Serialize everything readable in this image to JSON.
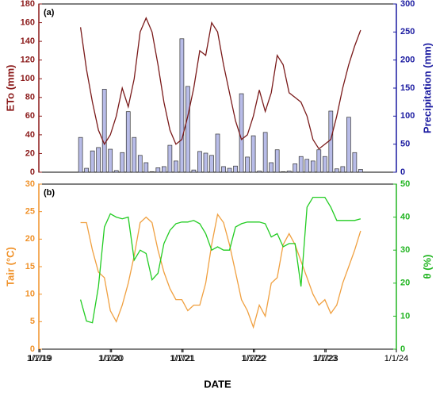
{
  "chart_data": [
    {
      "type": "combo",
      "annotation": "(a)",
      "ylabel": "ETo (mm)",
      "y2label": "Precipitation (mm)",
      "xlim": [
        "1/1/19",
        "1/1/24"
      ],
      "ylim": [
        0,
        180
      ],
      "yticks": [
        0,
        20,
        40,
        60,
        80,
        100,
        120,
        140,
        160,
        180
      ],
      "y2lim": [
        0,
        300
      ],
      "y2ticks": [
        0,
        50,
        100,
        150,
        200,
        250,
        300
      ],
      "ycolor": "#8b1a1a",
      "y2color": "#1a1aa0",
      "x": [
        "8/1/19",
        "9/1/19",
        "10/1/19",
        "11/1/19",
        "12/1/19",
        "1/1/20",
        "2/1/20",
        "3/1/20",
        "4/1/20",
        "5/1/20",
        "6/1/20",
        "7/1/20",
        "8/1/20",
        "9/1/20",
        "10/1/20",
        "11/1/20",
        "12/1/20",
        "1/1/21",
        "2/1/21",
        "3/1/21",
        "4/1/21",
        "5/1/21",
        "6/1/21",
        "7/1/21",
        "8/1/21",
        "9/1/21",
        "10/1/21",
        "11/1/21",
        "12/1/21",
        "1/1/22",
        "2/1/22",
        "3/1/22",
        "4/1/22",
        "5/1/22",
        "6/1/22",
        "7/1/22",
        "8/1/22",
        "9/1/22",
        "10/1/22",
        "11/1/22",
        "12/1/22",
        "1/1/23",
        "2/1/23",
        "3/1/23",
        "4/1/23",
        "5/1/23",
        "6/1/23",
        "7/1/23"
      ],
      "series": [
        {
          "type": "bar",
          "axis": "y2",
          "color": "#b8bce8",
          "values": [
            62,
            7,
            38,
            44,
            148,
            41,
            3,
            35,
            108,
            62,
            30,
            17,
            1,
            8,
            10,
            48,
            20,
            238,
            153,
            4,
            37,
            34,
            30,
            68,
            10,
            7,
            11,
            140,
            27,
            65,
            2,
            71,
            17,
            40,
            1,
            2,
            15,
            28,
            23,
            20,
            40,
            28,
            109,
            6,
            10,
            98,
            35,
            5
          ]
        },
        {
          "type": "line",
          "color": "#7a1a1a",
          "values": [
            155,
            110,
            75,
            45,
            30,
            40,
            60,
            90,
            70,
            100,
            150,
            165,
            150,
            115,
            75,
            45,
            30,
            35,
            60,
            90,
            130,
            125,
            160,
            150,
            115,
            85,
            55,
            35,
            40,
            60,
            88,
            65,
            85,
            125,
            115,
            85,
            80,
            75,
            60,
            35,
            25,
            30,
            35,
            60,
            90,
            115,
            135,
            152
          ]
        }
      ]
    },
    {
      "type": "line",
      "annotation": "(b)",
      "ylabel": "Tair (°C)",
      "y2label": "θ (%)",
      "xlabel": "DATE",
      "xlim": [
        "1/1/19",
        "1/1/24"
      ],
      "xticks": [
        "1/1/19",
        "1/7/19",
        "1/1/20",
        "1/7/20",
        "1/1/21",
        "1/7/21",
        "1/1/22",
        "1/7/22",
        "1/1/23",
        "1/7/23",
        "1/1/24"
      ],
      "ylim": [
        0,
        30
      ],
      "yticks": [
        0,
        5,
        10,
        15,
        20,
        25,
        30
      ],
      "y2lim": [
        0,
        50
      ],
      "y2ticks": [
        0,
        10,
        20,
        30,
        40,
        50
      ],
      "ycolor": "#f0922a",
      "y2color": "#22b522",
      "x": [
        "8/1/19",
        "9/1/19",
        "10/1/19",
        "11/1/19",
        "12/1/19",
        "1/1/20",
        "2/1/20",
        "3/1/20",
        "4/1/20",
        "5/1/20",
        "6/1/20",
        "7/1/20",
        "8/1/20",
        "9/1/20",
        "10/1/20",
        "11/1/20",
        "12/1/20",
        "1/1/21",
        "2/1/21",
        "3/1/21",
        "4/1/21",
        "5/1/21",
        "6/1/21",
        "7/1/21",
        "8/1/21",
        "9/1/21",
        "10/1/21",
        "11/1/21",
        "12/1/21",
        "1/1/22",
        "2/1/22",
        "3/1/22",
        "4/1/22",
        "5/1/22",
        "6/1/22",
        "7/1/22",
        "8/1/22",
        "9/1/22",
        "10/1/22",
        "11/1/22",
        "12/1/22",
        "1/1/23",
        "2/1/23",
        "3/1/23",
        "4/1/23",
        "5/1/23",
        "6/1/23",
        "7/1/23"
      ],
      "series": [
        {
          "type": "line",
          "color": "#f0a040",
          "values": [
            23,
            23,
            18,
            14,
            13,
            7,
            5,
            8,
            12,
            17,
            23,
            24,
            23,
            18,
            14,
            11,
            9,
            9,
            7,
            8,
            8,
            12,
            19,
            24.5,
            23,
            19,
            14,
            9,
            7,
            4,
            8,
            6,
            12,
            13,
            19,
            21,
            19,
            16,
            13,
            10,
            8,
            9,
            6.5,
            8,
            12,
            15,
            18,
            21.5
          ]
        },
        {
          "type": "line",
          "axis": "y2",
          "color": "#22cc22",
          "values": [
            15,
            8.5,
            8,
            19,
            37,
            41,
            40,
            39.5,
            40,
            27,
            30,
            29,
            21,
            23,
            32,
            36,
            38,
            38.5,
            38.5,
            39,
            38,
            35,
            30,
            31,
            30,
            30,
            37,
            38,
            38.5,
            38.5,
            38.5,
            38,
            34,
            35,
            31,
            32,
            32,
            19,
            43,
            46,
            46,
            46,
            43,
            39,
            39,
            39,
            39,
            39.5
          ]
        }
      ]
    }
  ]
}
